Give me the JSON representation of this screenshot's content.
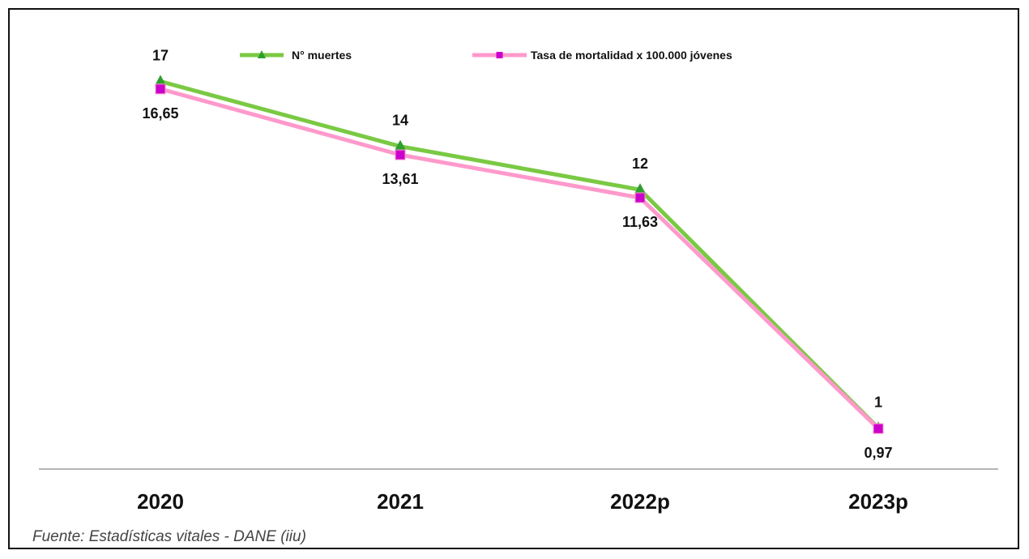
{
  "chart_data": {
    "type": "line",
    "categories": [
      "2020",
      "2021",
      "2022p",
      "2023p"
    ],
    "series": [
      {
        "name": "N° muertes",
        "values": [
          17,
          14,
          12,
          1
        ],
        "labels": [
          "17",
          "14",
          "12",
          "1"
        ],
        "color": "#7ac943",
        "marker": "triangle"
      },
      {
        "name": "Tasa de mortalidad x 100.000  jóvenes",
        "values": [
          16.65,
          13.61,
          11.63,
          0.97
        ],
        "labels": [
          "16,65",
          "13,61",
          "11,63",
          "0,97"
        ],
        "color": "#ff99cc",
        "marker_color": "#cc00cc",
        "marker": "square"
      }
    ],
    "ylim": [
      0,
      19
    ],
    "legend": "top-center",
    "grid": false
  },
  "source_note": "Fuente: Estadísticas vitales - DANE (iiu)"
}
